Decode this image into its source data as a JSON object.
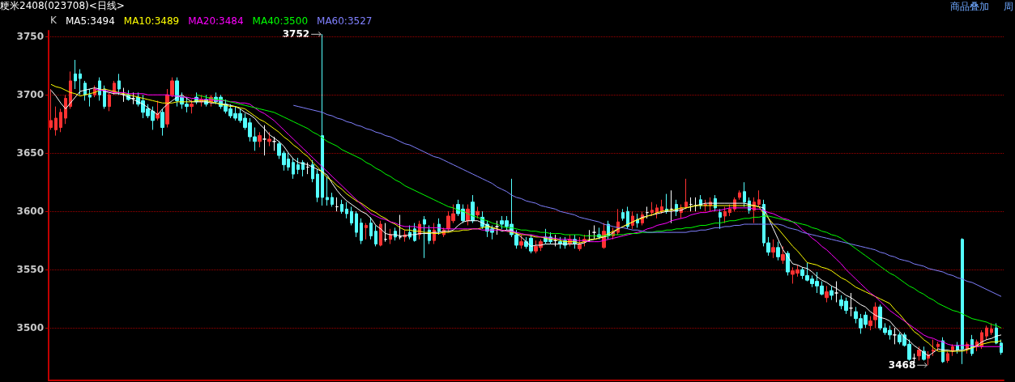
{
  "chart_data": {
    "type": "candlestick",
    "title": "粳米2408(023708)<日线>",
    "annotations": [
      "商品叠加",
      "周",
      "3752",
      "3468"
    ],
    "legend_title": "K",
    "categories": [
      null,
      null,
      null,
      null,
      null,
      null,
      null,
      null,
      null,
      null,
      null,
      null,
      null,
      null,
      null,
      null,
      null,
      null,
      null,
      null,
      null,
      null,
      null,
      null,
      null,
      null,
      null,
      null,
      null,
      null,
      null,
      null,
      null,
      null,
      null,
      null,
      null,
      null,
      null,
      null,
      null,
      null,
      null,
      null,
      null,
      null,
      null,
      null,
      null,
      null,
      null,
      null,
      null,
      null,
      null,
      null,
      null,
      null,
      null,
      null,
      null,
      null,
      null,
      null,
      null,
      null,
      null,
      null,
      null,
      null,
      null,
      null,
      null,
      null,
      null,
      null,
      null,
      null,
      null,
      null,
      null,
      null,
      null,
      null,
      null,
      null,
      null,
      null,
      null,
      null,
      null,
      null,
      null,
      null,
      null,
      null,
      null,
      null,
      null,
      null,
      null,
      null,
      null,
      null,
      null,
      null,
      null,
      null,
      null,
      null,
      null,
      null,
      null,
      null,
      null,
      null,
      null,
      null,
      null,
      null,
      null,
      null,
      null,
      null,
      null,
      null,
      null,
      null,
      null,
      null,
      null,
      null,
      null,
      null,
      null,
      null,
      null,
      null,
      null,
      null,
      null,
      null,
      null,
      null,
      null,
      null,
      null,
      null,
      null,
      null,
      null,
      null,
      null,
      null,
      null,
      null,
      null,
      null,
      null,
      null,
      null,
      null,
      null,
      null,
      null,
      null,
      null,
      null,
      null,
      null,
      null,
      null,
      null,
      null,
      null,
      null,
      null,
      null,
      null,
      null,
      null,
      null,
      null,
      null,
      null,
      null,
      null,
      null,
      null,
      null,
      null,
      null,
      null,
      null,
      null,
      null,
      null
    ],
    "ohlc": [
      [
        3672,
        3705,
        3670,
        3678
      ],
      [
        3670,
        3690,
        3665,
        3680
      ],
      [
        3672,
        3688,
        3668,
        3685
      ],
      [
        3680,
        3700,
        3675,
        3697
      ],
      [
        3690,
        3720,
        3688,
        3712
      ],
      [
        3718,
        3730,
        3705,
        3712
      ],
      [
        3718,
        3722,
        3700,
        3714
      ],
      [
        3710,
        3712,
        3695,
        3700
      ],
      [
        3700,
        3705,
        3690,
        3698
      ],
      [
        3700,
        3708,
        3698,
        3705
      ],
      [
        3712,
        3715,
        3695,
        3700
      ],
      [
        3705,
        3708,
        3688,
        3690
      ],
      [
        3690,
        3702,
        3686,
        3700
      ],
      [
        3702,
        3712,
        3700,
        3710
      ],
      [
        3712,
        3718,
        3700,
        3705
      ],
      [
        3700,
        3706,
        3694,
        3700
      ],
      [
        3700,
        3704,
        3695,
        3696
      ],
      [
        3697,
        3702,
        3692,
        3697
      ],
      [
        3698,
        3702,
        3690,
        3692
      ],
      [
        3695,
        3700,
        3680,
        3685
      ],
      [
        3688,
        3692,
        3680,
        3682
      ],
      [
        3686,
        3690,
        3670,
        3678
      ],
      [
        3680,
        3695,
        3678,
        3684
      ],
      [
        3685,
        3688,
        3665,
        3672
      ],
      [
        3675,
        3705,
        3672,
        3700
      ],
      [
        3700,
        3715,
        3698,
        3712
      ],
      [
        3712,
        3715,
        3690,
        3695
      ],
      [
        3698,
        3702,
        3688,
        3692
      ],
      [
        3692,
        3698,
        3685,
        3690
      ],
      [
        3690,
        3696,
        3684,
        3692
      ],
      [
        3698,
        3702,
        3692,
        3694
      ],
      [
        3694,
        3700,
        3690,
        3696
      ],
      [
        3696,
        3700,
        3690,
        3692
      ],
      [
        3694,
        3700,
        3690,
        3698
      ],
      [
        3698,
        3702,
        3692,
        3694
      ],
      [
        3698,
        3700,
        3688,
        3690
      ],
      [
        3692,
        3696,
        3684,
        3686
      ],
      [
        3688,
        3692,
        3680,
        3682
      ],
      [
        3684,
        3690,
        3678,
        3680
      ],
      [
        3684,
        3688,
        3676,
        3678
      ],
      [
        3680,
        3684,
        3670,
        3672
      ],
      [
        3676,
        3680,
        3660,
        3664
      ],
      [
        3664,
        3672,
        3652,
        3660
      ],
      [
        3660,
        3668,
        3655,
        3665
      ],
      [
        3662,
        3674,
        3648,
        3662
      ],
      [
        3660,
        3668,
        3656,
        3662
      ],
      [
        3660,
        3664,
        3652,
        3660
      ],
      [
        3658,
        3660,
        3645,
        3648
      ],
      [
        3650,
        3652,
        3635,
        3640
      ],
      [
        3645,
        3650,
        3635,
        3638
      ],
      [
        3642,
        3646,
        3628,
        3632
      ],
      [
        3640,
        3646,
        3632,
        3636
      ],
      [
        3642,
        3644,
        3630,
        3636
      ],
      [
        3638,
        3642,
        3632,
        3638
      ],
      [
        3640,
        3644,
        3625,
        3628
      ],
      [
        3632,
        3636,
        3608,
        3612
      ],
      [
        3665,
        3752,
        3605,
        3612
      ],
      [
        3612,
        3630,
        3605,
        3610
      ],
      [
        3612,
        3616,
        3604,
        3606
      ],
      [
        3604,
        3612,
        3600,
        3604
      ],
      [
        3606,
        3610,
        3598,
        3600
      ],
      [
        3602,
        3608,
        3594,
        3598
      ],
      [
        3600,
        3604,
        3588,
        3590
      ],
      [
        3598,
        3600,
        3578,
        3582
      ],
      [
        3590,
        3594,
        3572,
        3575
      ],
      [
        3586,
        3590,
        3576,
        3588
      ],
      [
        3590,
        3595,
        3576,
        3579
      ],
      [
        3583,
        3588,
        3570,
        3572
      ],
      [
        3571,
        3592,
        3570,
        3589
      ],
      [
        3576,
        3590,
        3574,
        3576
      ],
      [
        3576,
        3585,
        3572,
        3580
      ],
      [
        3583,
        3586,
        3575,
        3578
      ],
      [
        3578,
        3597,
        3576,
        3578
      ],
      [
        3578,
        3584,
        3574,
        3580
      ],
      [
        3582,
        3588,
        3576,
        3578
      ],
      [
        3585,
        3590,
        3574,
        3575
      ],
      [
        3580,
        3592,
        3576,
        3589
      ],
      [
        3593,
        3596,
        3560,
        3589
      ],
      [
        3584,
        3588,
        3572,
        3575
      ],
      [
        3575,
        3590,
        3572,
        3584
      ],
      [
        3589,
        3594,
        3580,
        3583
      ],
      [
        3580,
        3586,
        3578,
        3584
      ],
      [
        3585,
        3600,
        3582,
        3596
      ],
      [
        3592,
        3606,
        3590,
        3598
      ],
      [
        3606,
        3610,
        3596,
        3598
      ],
      [
        3602,
        3606,
        3590,
        3592
      ],
      [
        3592,
        3606,
        3588,
        3602
      ],
      [
        3608,
        3614,
        3590,
        3592
      ],
      [
        3597,
        3604,
        3594,
        3600
      ],
      [
        3595,
        3600,
        3585,
        3587
      ],
      [
        3589,
        3592,
        3578,
        3583
      ],
      [
        3585,
        3588,
        3576,
        3582
      ],
      [
        3587,
        3592,
        3580,
        3587
      ],
      [
        3592,
        3596,
        3585,
        3589
      ],
      [
        3592,
        3596,
        3584,
        3587
      ],
      [
        3589,
        3628,
        3578,
        3580
      ],
      [
        3580,
        3584,
        3568,
        3571
      ],
      [
        3571,
        3580,
        3568,
        3574
      ],
      [
        3574,
        3578,
        3568,
        3570
      ],
      [
        3577,
        3580,
        3564,
        3566
      ],
      [
        3566,
        3575,
        3564,
        3570
      ],
      [
        3569,
        3576,
        3566,
        3574
      ],
      [
        3578,
        3585,
        3572,
        3574
      ],
      [
        3578,
        3582,
        3572,
        3574
      ],
      [
        3575,
        3580,
        3570,
        3575
      ],
      [
        3574,
        3578,
        3568,
        3572
      ],
      [
        3575,
        3578,
        3568,
        3571
      ],
      [
        3572,
        3580,
        3570,
        3576
      ],
      [
        3576,
        3580,
        3568,
        3572
      ],
      [
        3568,
        3578,
        3566,
        3572
      ],
      [
        3574,
        3580,
        3570,
        3576
      ],
      [
        3579,
        3584,
        3574,
        3579
      ],
      [
        3582,
        3588,
        3576,
        3582
      ],
      [
        3580,
        3586,
        3576,
        3578
      ],
      [
        3569,
        3590,
        3568,
        3583
      ],
      [
        3589,
        3592,
        3576,
        3579
      ],
      [
        3579,
        3586,
        3576,
        3582
      ],
      [
        3582,
        3602,
        3580,
        3591
      ],
      [
        3599,
        3602,
        3592,
        3594
      ],
      [
        3600,
        3604,
        3585,
        3587
      ],
      [
        3588,
        3600,
        3585,
        3596
      ],
      [
        3593,
        3598,
        3586,
        3590
      ],
      [
        3590,
        3600,
        3588,
        3597
      ],
      [
        3599,
        3604,
        3594,
        3599
      ],
      [
        3599,
        3608,
        3596,
        3601
      ],
      [
        3599,
        3606,
        3594,
        3603
      ],
      [
        3600,
        3610,
        3598,
        3604
      ],
      [
        3602,
        3615,
        3598,
        3600
      ],
      [
        3602,
        3618,
        3590,
        3602
      ],
      [
        3606,
        3610,
        3596,
        3600
      ],
      [
        3599,
        3606,
        3594,
        3603
      ],
      [
        3604,
        3628,
        3602,
        3608
      ],
      [
        3606,
        3612,
        3600,
        3606
      ],
      [
        3605,
        3612,
        3600,
        3605
      ],
      [
        3610,
        3614,
        3602,
        3605
      ],
      [
        3605,
        3610,
        3600,
        3606
      ],
      [
        3605,
        3612,
        3600,
        3608
      ],
      [
        3611,
        3614,
        3600,
        3603
      ],
      [
        3599,
        3602,
        3585,
        3595
      ],
      [
        3596,
        3604,
        3590,
        3600
      ],
      [
        3599,
        3606,
        3596,
        3602
      ],
      [
        3602,
        3612,
        3600,
        3610
      ],
      [
        3612,
        3618,
        3610,
        3616
      ],
      [
        3617,
        3625,
        3604,
        3608
      ],
      [
        3609,
        3612,
        3598,
        3601
      ],
      [
        3601,
        3612,
        3590,
        3608
      ],
      [
        3606,
        3618,
        3604,
        3610
      ],
      [
        3606,
        3610,
        3570,
        3573
      ],
      [
        3573,
        3578,
        3562,
        3565
      ],
      [
        3565,
        3576,
        3560,
        3569
      ],
      [
        3569,
        3574,
        3558,
        3561
      ],
      [
        3558,
        3570,
        3555,
        3563
      ],
      [
        3564,
        3566,
        3545,
        3548
      ],
      [
        3546,
        3552,
        3538,
        3549
      ],
      [
        3547,
        3554,
        3544,
        3550
      ],
      [
        3550,
        3552,
        3542,
        3545
      ],
      [
        3545,
        3556,
        3540,
        3541
      ],
      [
        3542,
        3545,
        3535,
        3538
      ],
      [
        3540,
        3548,
        3530,
        3536
      ],
      [
        3536,
        3540,
        3528,
        3529
      ],
      [
        3526,
        3536,
        3522,
        3531
      ],
      [
        3532,
        3536,
        3524,
        3528
      ],
      [
        3530,
        3540,
        3522,
        3530
      ],
      [
        3524,
        3528,
        3516,
        3519
      ],
      [
        3523,
        3526,
        3512,
        3515
      ],
      [
        3517,
        3530,
        3510,
        3517
      ],
      [
        3514,
        3518,
        3504,
        3508
      ],
      [
        3508,
        3512,
        3495,
        3500
      ],
      [
        3511,
        3514,
        3500,
        3503
      ],
      [
        3502,
        3510,
        3498,
        3506
      ],
      [
        3507,
        3522,
        3500,
        3518
      ],
      [
        3518,
        3520,
        3498,
        3500
      ],
      [
        3500,
        3504,
        3494,
        3496
      ],
      [
        3498,
        3502,
        3490,
        3494
      ],
      [
        3494,
        3500,
        3486,
        3494
      ],
      [
        3494,
        3496,
        3486,
        3488
      ],
      [
        3494,
        3496,
        3484,
        3485
      ],
      [
        3486,
        3490,
        3472,
        3473
      ],
      [
        3474,
        3478,
        3470,
        3474
      ],
      [
        3476,
        3484,
        3472,
        3481
      ],
      [
        3480,
        3484,
        3472,
        3473
      ],
      [
        3474,
        3480,
        3468,
        3477
      ],
      [
        3480,
        3490,
        3476,
        3481
      ],
      [
        3484,
        3488,
        3480,
        3486
      ],
      [
        3489,
        3492,
        3470,
        3471
      ],
      [
        3472,
        3480,
        3470,
        3478
      ],
      [
        3480,
        3486,
        3476,
        3484
      ],
      [
        3485,
        3488,
        3478,
        3481
      ],
      [
        3576,
        3577,
        3469,
        3482
      ],
      [
        3482,
        3488,
        3478,
        3486
      ],
      [
        3490,
        3494,
        3476,
        3478
      ],
      [
        3484,
        3490,
        3480,
        3488
      ],
      [
        3484,
        3498,
        3482,
        3496
      ],
      [
        3493,
        3502,
        3490,
        3500
      ],
      [
        3496,
        3504,
        3494,
        3499
      ],
      [
        3500,
        3504,
        3486,
        3487
      ],
      [
        3487,
        3490,
        3477,
        3479
      ]
    ],
    "colors": [
      "#ff3232",
      "#ff3232",
      "#ff3232",
      "#ff3232",
      "#ff3232",
      "#54ffff",
      "#54ffff",
      "#54ffff",
      "#54ffff",
      "#ff3232",
      "#54ffff",
      "#54ffff",
      "#ff3232",
      "#ff3232",
      "#54ffff",
      "#ffffff",
      "#54ffff",
      "#ffffff",
      "#54ffff",
      "#54ffff",
      "#54ffff",
      "#54ffff",
      "#ff3232",
      "#54ffff",
      "#ff3232",
      "#ff3232",
      "#54ffff",
      "#54ffff",
      "#54ffff",
      "#ff3232",
      "#54ffff",
      "#ff3232",
      "#54ffff",
      "#ff3232",
      "#54ffff",
      "#54ffff",
      "#54ffff",
      "#54ffff",
      "#54ffff",
      "#54ffff",
      "#54ffff",
      "#54ffff",
      "#54ffff",
      "#ff3232",
      "#ffffff",
      "#ff3232",
      "#ffffff",
      "#54ffff",
      "#54ffff",
      "#54ffff",
      "#54ffff",
      "#54ffff",
      "#54ffff",
      "#ffffff",
      "#54ffff",
      "#54ffff",
      "#54ffff",
      "#54ffff",
      "#54ffff",
      "#ffffff",
      "#54ffff",
      "#54ffff",
      "#54ffff",
      "#54ffff",
      "#54ffff",
      "#ff3232",
      "#54ffff",
      "#54ffff",
      "#ff3232",
      "#ffffff",
      "#ff3232",
      "#54ffff",
      "#ffffff",
      "#ff3232",
      "#54ffff",
      "#54ffff",
      "#ff3232",
      "#54ffff",
      "#54ffff",
      "#ff3232",
      "#54ffff",
      "#ff3232",
      "#ff3232",
      "#ff3232",
      "#54ffff",
      "#54ffff",
      "#ff3232",
      "#54ffff",
      "#ff3232",
      "#54ffff",
      "#54ffff",
      "#54ffff",
      "#ffffff",
      "#54ffff",
      "#54ffff",
      "#54ffff",
      "#54ffff",
      "#ff3232",
      "#54ffff",
      "#54ffff",
      "#ff3232",
      "#ff3232",
      "#54ffff",
      "#54ffff",
      "#ffffff",
      "#54ffff",
      "#54ffff",
      "#ff3232",
      "#54ffff",
      "#ff3232",
      "#ff3232",
      "#ffffff",
      "#ffffff",
      "#54ffff",
      "#ff3232",
      "#54ffff",
      "#ff3232",
      "#ff3232",
      "#54ffff",
      "#54ffff",
      "#ff3232",
      "#54ffff",
      "#ff3232",
      "#ffffff",
      "#ff3232",
      "#ff3232",
      "#ff3232",
      "#54ffff",
      "#ffffff",
      "#54ffff",
      "#ff3232",
      "#ff3232",
      "#ffffff",
      "#ffffff",
      "#54ffff",
      "#ff3232",
      "#ff3232",
      "#54ffff",
      "#54ffff",
      "#ff3232",
      "#ff3232",
      "#ff3232",
      "#ff3232",
      "#54ffff",
      "#54ffff",
      "#ff3232",
      "#ff3232",
      "#54ffff",
      "#54ffff",
      "#ff3232",
      "#54ffff",
      "#ff3232",
      "#54ffff",
      "#ff3232",
      "#ff3232",
      "#54ffff",
      "#54ffff",
      "#54ffff",
      "#54ffff",
      "#54ffff",
      "#ff3232",
      "#54ffff",
      "#ffffff",
      "#54ffff",
      "#54ffff",
      "#ffffff",
      "#54ffff",
      "#54ffff",
      "#54ffff",
      "#ff3232",
      "#ff3232",
      "#54ffff",
      "#54ffff",
      "#54ffff",
      "#ffffff",
      "#54ffff",
      "#54ffff",
      "#54ffff",
      "#ffffff",
      "#ff3232",
      "#54ffff",
      "#ff3232",
      "#ff3232",
      "#ff3232",
      "#54ffff",
      "#ff3232",
      "#ff3232",
      "#54ffff",
      "#54ffff",
      "#ff3232",
      "#54ffff",
      "#ff3232",
      "#ff3232",
      "#ff3232",
      "#ff3232",
      "#54ffff",
      "#54ffff"
    ],
    "series": [
      {
        "name": "MA5:3494",
        "type": "line",
        "color": "#ffffff",
        "values": [
          3704,
          3699,
          3693,
          3688,
          3693,
          3698,
          3703,
          3704,
          3705,
          3706,
          3705,
          3703,
          3702,
          3701,
          3701,
          3700,
          3698,
          3696,
          3694,
          3692,
          3689,
          3686,
          3683,
          3688,
          3692,
          3695,
          3698,
          3700,
          3697,
          3694,
          3694,
          3694,
          3694,
          3693,
          3693,
          3692,
          3692,
          3691,
          3690,
          3688,
          3685,
          3683,
          3680,
          3675,
          3671,
          3666,
          3663,
          3660,
          3656,
          3650,
          3645,
          3642,
          3641,
          3640,
          3638,
          3636,
          3634,
          3631,
          3624,
          3618,
          3613,
          3609,
          3606,
          3603,
          3600,
          3598,
          3594,
          3588,
          3585,
          3581,
          3580,
          3580,
          3579,
          3579,
          3580,
          3580,
          3581,
          3581,
          3581,
          3582,
          3582,
          3583,
          3583,
          3584,
          3588,
          3591,
          3592,
          3592,
          3592,
          3590,
          3588,
          3586,
          3585,
          3583,
          3584,
          3584,
          3581,
          3578,
          3574,
          3570,
          3571,
          3571,
          3572,
          3572,
          3572,
          3572,
          3572,
          3572,
          3572,
          3572,
          3573,
          3575,
          3576,
          3577,
          3578,
          3579,
          3582,
          3585,
          3587,
          3589,
          3591,
          3593,
          3595,
          3596,
          3597,
          3598,
          3599,
          3600,
          3600,
          3601,
          3601,
          3603,
          3604,
          3605,
          3606,
          3607,
          3607,
          3607,
          3607,
          3607,
          3607,
          3607,
          3607,
          3607,
          3606,
          3605,
          3604,
          3603,
          3594,
          3585,
          3576,
          3567,
          3561,
          3555,
          3554,
          3552,
          3551,
          3548,
          3544,
          3541,
          3539,
          3536,
          3534,
          3531,
          3528,
          3526,
          3523,
          3520,
          3518,
          3514,
          3511,
          3509,
          3508,
          3506,
          3501,
          3497,
          3492,
          3489,
          3485,
          3482,
          3479,
          3476,
          3479,
          3482,
          3481,
          3481,
          3480,
          3481,
          3481,
          3482,
          3483,
          3485,
          3488,
          3490,
          3491,
          3493,
          3494
        ]
      },
      {
        "name": "MA10:3489",
        "type": "line",
        "color": "#ffff00",
        "values": [
          3709,
          3707,
          3706,
          3704,
          3702,
          3701,
          3699,
          3700,
          3701,
          3702,
          3704,
          3705,
          3704,
          3703,
          3702,
          3701,
          3700,
          3699,
          3698,
          3697,
          3696,
          3695,
          3694,
          3693,
          3693,
          3693,
          3694,
          3694,
          3694,
          3694,
          3695,
          3695,
          3695,
          3694,
          3693,
          3692,
          3691,
          3690,
          3690,
          3689,
          3688,
          3685,
          3682,
          3679,
          3677,
          3674,
          3671,
          3668,
          3664,
          3661,
          3657,
          3654,
          3650,
          3647,
          3642,
          3638,
          3633,
          3629,
          3626,
          3622,
          3619,
          3615,
          3612,
          3609,
          3607,
          3604,
          3601,
          3599,
          3596,
          3594,
          3591,
          3589,
          3586,
          3584,
          3584,
          3583,
          3583,
          3582,
          3582,
          3581,
          3581,
          3582,
          3582,
          3583,
          3583,
          3584,
          3584,
          3585,
          3585,
          3586,
          3587,
          3586,
          3585,
          3584,
          3583,
          3582,
          3581,
          3580,
          3580,
          3579,
          3578,
          3578,
          3577,
          3576,
          3576,
          3575,
          3574,
          3574,
          3574,
          3573,
          3574,
          3576,
          3576,
          3577,
          3579,
          3581,
          3583,
          3585,
          3587,
          3589,
          3591,
          3593,
          3594,
          3596,
          3597,
          3599,
          3600,
          3601,
          3601,
          3602,
          3603,
          3603,
          3604,
          3605,
          3605,
          3605,
          3605,
          3605,
          3605,
          3605,
          3605,
          3605,
          3605,
          3605,
          3605,
          3605,
          3604,
          3598,
          3594,
          3589,
          3585,
          3580,
          3575,
          3570,
          3566,
          3561,
          3556,
          3555,
          3554,
          3552,
          3551,
          3549,
          3546,
          3543,
          3541,
          3538,
          3535,
          3533,
          3531,
          3529,
          3527,
          3525,
          3523,
          3521,
          3516,
          3512,
          3507,
          3502,
          3497,
          3494,
          3490,
          3487,
          3483,
          3480,
          3480,
          3480,
          3480,
          3480,
          3480,
          3481,
          3483,
          3484,
          3486,
          3487,
          3488,
          3488,
          3489
        ]
      },
      {
        "name": "MA20:3484",
        "type": "line",
        "color": "#ff00ff",
        "values": [
          null,
          null,
          null,
          null,
          null,
          null,
          null,
          null,
          null,
          3705,
          3704,
          3704,
          3703,
          3702,
          3702,
          3702,
          3701,
          3701,
          3701,
          3701,
          3700,
          3700,
          3700,
          3700,
          3700,
          3699,
          3699,
          3698,
          3698,
          3697,
          3697,
          3696,
          3696,
          3696,
          3695,
          3695,
          3695,
          3694,
          3694,
          3693,
          3693,
          3692,
          3689,
          3686,
          3684,
          3681,
          3678,
          3674,
          3670,
          3666,
          3662,
          3658,
          3654,
          3650,
          3646,
          3642,
          3638,
          3634,
          3630,
          3626,
          3622,
          3618,
          3614,
          3610,
          3606,
          3602,
          3598,
          3596,
          3594,
          3593,
          3591,
          3590,
          3588,
          3587,
          3587,
          3587,
          3586,
          3586,
          3586,
          3586,
          3586,
          3585,
          3585,
          3585,
          3585,
          3585,
          3585,
          3585,
          3585,
          3584,
          3584,
          3584,
          3584,
          3584,
          3583,
          3583,
          3582,
          3581,
          3580,
          3580,
          3579,
          3578,
          3578,
          3577,
          3577,
          3576,
          3576,
          3576,
          3575,
          3575,
          3575,
          3574,
          3574,
          3574,
          3575,
          3576,
          3577,
          3578,
          3579,
          3580,
          3581,
          3582,
          3583,
          3585,
          3586,
          3588,
          3589,
          3590,
          3592,
          3593,
          3594,
          3595,
          3597,
          3598,
          3599,
          3599,
          3600,
          3601,
          3601,
          3602,
          3603,
          3603,
          3603,
          3603,
          3603,
          3602,
          3602,
          3601,
          3599,
          3598,
          3596,
          3594,
          3593,
          3591,
          3588,
          3584,
          3581,
          3577,
          3574,
          3570,
          3567,
          3563,
          3559,
          3555,
          3550,
          3546,
          3542,
          3538,
          3534,
          3530,
          3527,
          3523,
          3519,
          3515,
          3512,
          3509,
          3506,
          3503,
          3500,
          3497,
          3494,
          3492,
          3491,
          3489,
          3488,
          3486,
          3485,
          3485,
          3485,
          3485,
          3485,
          3484,
          3484,
          3484,
          3484,
          3484,
          3484
        ]
      },
      {
        "name": "MA40:3500",
        "type": "line",
        "color": "#00ff00",
        "values": [
          null,
          null,
          null,
          null,
          null,
          null,
          null,
          null,
          null,
          null,
          null,
          null,
          null,
          null,
          null,
          null,
          null,
          null,
          null,
          null,
          null,
          null,
          null,
          null,
          null,
          null,
          null,
          null,
          null,
          null,
          3700,
          3699,
          3698,
          3697,
          3696,
          3696,
          3695,
          3694,
          3693,
          3692,
          3691,
          3690,
          3689,
          3688,
          3687,
          3686,
          3685,
          3683,
          3681,
          3679,
          3677,
          3675,
          3673,
          3671,
          3668,
          3666,
          3663,
          3660,
          3658,
          3656,
          3653,
          3651,
          3649,
          3647,
          3645,
          3642,
          3640,
          3637,
          3635,
          3632,
          3630,
          3627,
          3625,
          3622,
          3620,
          3618,
          3616,
          3614,
          3612,
          3610,
          3608,
          3606,
          3604,
          3603,
          3601,
          3600,
          3598,
          3596,
          3595,
          3593,
          3592,
          3590,
          3589,
          3587,
          3586,
          3586,
          3585,
          3584,
          3584,
          3583,
          3583,
          3582,
          3582,
          3581,
          3581,
          3581,
          3580,
          3580,
          3580,
          3580,
          3579,
          3579,
          3579,
          3579,
          3579,
          3579,
          3580,
          3580,
          3580,
          3581,
          3581,
          3581,
          3582,
          3582,
          3582,
          3583,
          3583,
          3584,
          3584,
          3585,
          3585,
          3586,
          3586,
          3587,
          3588,
          3588,
          3589,
          3590,
          3590,
          3591,
          3592,
          3592,
          3593,
          3594,
          3594,
          3595,
          3595,
          3596,
          3596,
          3595,
          3594,
          3593,
          3592,
          3591,
          3590,
          3589,
          3588,
          3586,
          3585,
          3583,
          3582,
          3580,
          3579,
          3577,
          3574,
          3571,
          3568,
          3565,
          3562,
          3559,
          3556,
          3553,
          3550,
          3547,
          3545,
          3542,
          3539,
          3536,
          3534,
          3531,
          3529,
          3526,
          3524,
          3521,
          3519,
          3517,
          3515,
          3514,
          3512,
          3510,
          3508,
          3507,
          3506,
          3505,
          3503,
          3502,
          3500
        ]
      },
      {
        "name": "MA60:3527",
        "type": "line",
        "color": "#8080ff",
        "values": [
          null,
          null,
          null,
          null,
          null,
          null,
          null,
          null,
          null,
          null,
          null,
          null,
          null,
          null,
          null,
          null,
          null,
          null,
          null,
          null,
          null,
          null,
          null,
          null,
          null,
          null,
          null,
          null,
          null,
          null,
          null,
          null,
          null,
          null,
          null,
          null,
          null,
          null,
          null,
          null,
          null,
          null,
          null,
          null,
          null,
          null,
          null,
          null,
          null,
          null,
          3691,
          3690,
          3689,
          3688,
          3687,
          3686,
          3685,
          3683,
          3682,
          3680,
          3679,
          3677,
          3676,
          3674,
          3673,
          3671,
          3670,
          3668,
          3667,
          3665,
          3664,
          3662,
          3660,
          3658,
          3657,
          3655,
          3653,
          3651,
          3649,
          3647,
          3646,
          3644,
          3642,
          3640,
          3638,
          3636,
          3634,
          3632,
          3630,
          3628,
          3626,
          3624,
          3621,
          3619,
          3617,
          3614,
          3612,
          3611,
          3609,
          3608,
          3607,
          3605,
          3604,
          3603,
          3602,
          3600,
          3599,
          3598,
          3597,
          3595,
          3594,
          3593,
          3592,
          3591,
          3589,
          3588,
          3587,
          3586,
          3586,
          3585,
          3584,
          3584,
          3583,
          3582,
          3582,
          3582,
          3582,
          3582,
          3582,
          3582,
          3582,
          3582,
          3583,
          3583,
          3584,
          3584,
          3585,
          3586,
          3586,
          3587,
          3587,
          3588,
          3588,
          3589,
          3589,
          3589,
          3589,
          3589,
          3589,
          3589,
          3589,
          3588,
          3586,
          3585,
          3584,
          3582,
          3581,
          3580,
          3579,
          3578,
          3577,
          3576,
          3575,
          3574,
          3573,
          3572,
          3571,
          3570,
          3569,
          3568,
          3567,
          3565,
          3564,
          3562,
          3561,
          3559,
          3558,
          3557,
          3555,
          3554,
          3553,
          3551,
          3550,
          3549,
          3548,
          3546,
          3545,
          3543,
          3542,
          3540,
          3539,
          3537,
          3535,
          3533,
          3531,
          3529,
          3527
        ]
      }
    ],
    "ylim": [
      3455,
      3755
    ],
    "yticks": [
      3500,
      3550,
      3600,
      3650,
      3700,
      3750
    ],
    "grid": "y",
    "legend": "top left",
    "tick_labels": "y"
  }
}
